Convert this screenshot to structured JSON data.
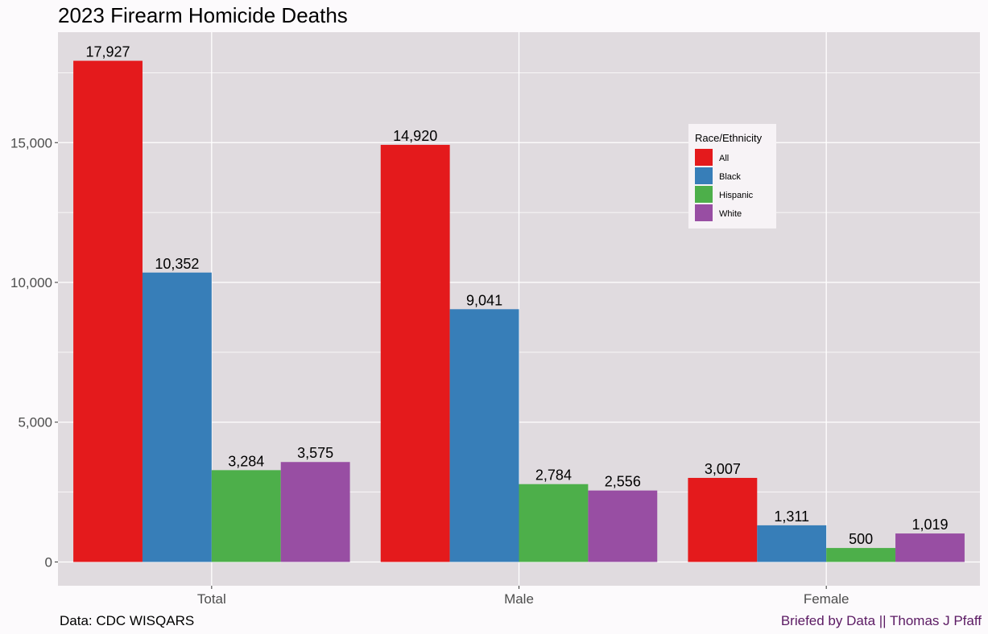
{
  "chart_data": {
    "type": "bar",
    "title": "2023 Firearm Homicide Deaths",
    "xlabel": "",
    "ylabel": "",
    "categories": [
      "Total",
      "Male",
      "Female"
    ],
    "series": [
      {
        "name": "All",
        "color": "#e41a1c",
        "values": [
          17927,
          14920,
          3007
        ],
        "labels": [
          "17,927",
          "14,920",
          "3,007"
        ]
      },
      {
        "name": "Black",
        "color": "#377eb8",
        "values": [
          10352,
          9041,
          1311
        ],
        "labels": [
          "10,352",
          "9,041",
          "1,311"
        ]
      },
      {
        "name": "Hispanic",
        "color": "#4daf4a",
        "values": [
          3284,
          2784,
          500
        ],
        "labels": [
          "3,284",
          "2,784",
          "500"
        ]
      },
      {
        "name": "White",
        "color": "#984ea3",
        "values": [
          3575,
          2556,
          1019
        ],
        "labels": [
          "3,575",
          "2,556",
          "1,019"
        ]
      }
    ],
    "ylim": [
      -850,
      18950
    ],
    "y_ticks": [
      0,
      5000,
      10000,
      15000
    ],
    "y_tick_labels": [
      "0",
      "5,000",
      "10,000",
      "15,000"
    ],
    "grid": true,
    "legend": {
      "title": "Race/Ethnicity",
      "position": "top-right inside plot"
    }
  },
  "caption": {
    "source": "Data: CDC WISQARS",
    "credit": "Briefed by Data || Thomas J Pfaff"
  },
  "colors": {
    "panel_background": "#e0dbdf",
    "page_background": "#fcfafc",
    "grid": "#ffffff",
    "credit_text": "#5b1a63"
  }
}
